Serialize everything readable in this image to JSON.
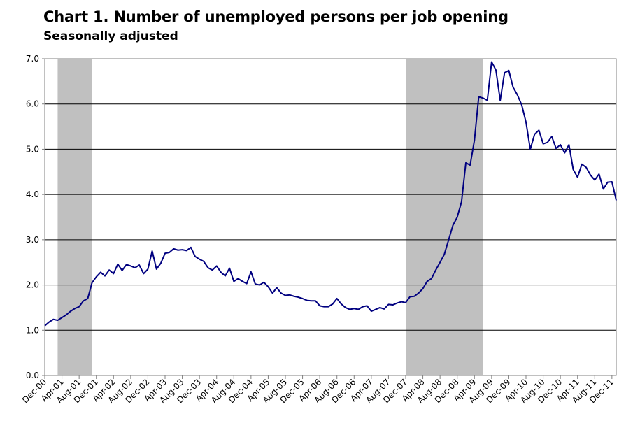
{
  "chart_data": {
    "type": "line",
    "title": "Chart 1. Number of unemployed persons per job opening",
    "subtitle": "Seasonally adjusted",
    "xlabel": "",
    "ylabel": "",
    "ylim": [
      0,
      7
    ],
    "yticks": [
      "0.0",
      "1.0",
      "2.0",
      "3.0",
      "4.0",
      "5.0",
      "6.0",
      "7.0"
    ],
    "grid": true,
    "xtick_labels": [
      "Dec-00",
      "Apr-01",
      "Aug-01",
      "Dec-01",
      "Apr-02",
      "Aug-02",
      "Dec-02",
      "Apr-03",
      "Aug-03",
      "Dec-03",
      "Apr-04",
      "Aug-04",
      "Dec-04",
      "Apr-05",
      "Aug-05",
      "Dec-05",
      "Apr-06",
      "Aug-06",
      "Dec-06",
      "Apr-07",
      "Aug-07",
      "Dec-07",
      "Apr-08",
      "Aug-08",
      "Dec-08",
      "Apr-09",
      "Aug-09",
      "Dec-09",
      "Apr-10",
      "Aug-10",
      "Dec-10",
      "Apr-11",
      "Aug-11",
      "Dec-11"
    ],
    "recessions": [
      {
        "start": "Mar-01",
        "end": "Nov-01"
      },
      {
        "start": "Dec-07",
        "end": "Jun-09"
      }
    ],
    "series": [
      {
        "start": "Dec-00",
        "values": [
          1.1,
          1.18,
          1.24,
          1.22,
          1.28,
          1.34,
          1.42,
          1.48,
          1.52,
          1.65,
          1.7,
          2.05,
          2.18,
          2.28,
          2.2,
          2.33,
          2.25,
          2.46,
          2.32,
          2.45,
          2.42,
          2.38,
          2.44,
          2.25,
          2.35,
          2.75,
          2.35,
          2.48,
          2.7,
          2.72,
          2.8,
          2.77,
          2.78,
          2.76,
          2.83,
          2.63,
          2.57,
          2.52,
          2.38,
          2.33,
          2.42,
          2.28,
          2.2,
          2.37,
          2.08,
          2.14,
          2.08,
          2.03,
          2.29,
          2.02,
          2.0,
          2.06,
          1.96,
          1.82,
          1.94,
          1.82,
          1.77,
          1.78,
          1.75,
          1.73,
          1.7,
          1.66,
          1.65,
          1.65,
          1.54,
          1.52,
          1.52,
          1.58,
          1.7,
          1.58,
          1.5,
          1.46,
          1.48,
          1.46,
          1.52,
          1.54,
          1.42,
          1.46,
          1.5,
          1.47,
          1.57,
          1.56,
          1.6,
          1.63,
          1.61,
          1.74,
          1.75,
          1.82,
          1.92,
          2.08,
          2.14,
          2.33,
          2.5,
          2.68,
          3.0,
          3.32,
          3.5,
          3.84,
          4.7,
          4.65,
          5.2,
          6.16,
          6.13,
          6.08,
          6.93,
          6.75,
          6.08,
          6.69,
          6.74,
          6.37,
          6.2,
          5.98,
          5.6,
          5.0,
          5.33,
          5.42,
          5.12,
          5.15,
          5.28,
          5.02,
          5.1,
          4.92,
          5.1,
          4.55,
          4.38,
          4.67,
          4.6,
          4.43,
          4.32,
          4.45,
          4.12,
          4.27,
          4.28,
          3.87
        ]
      }
    ]
  }
}
